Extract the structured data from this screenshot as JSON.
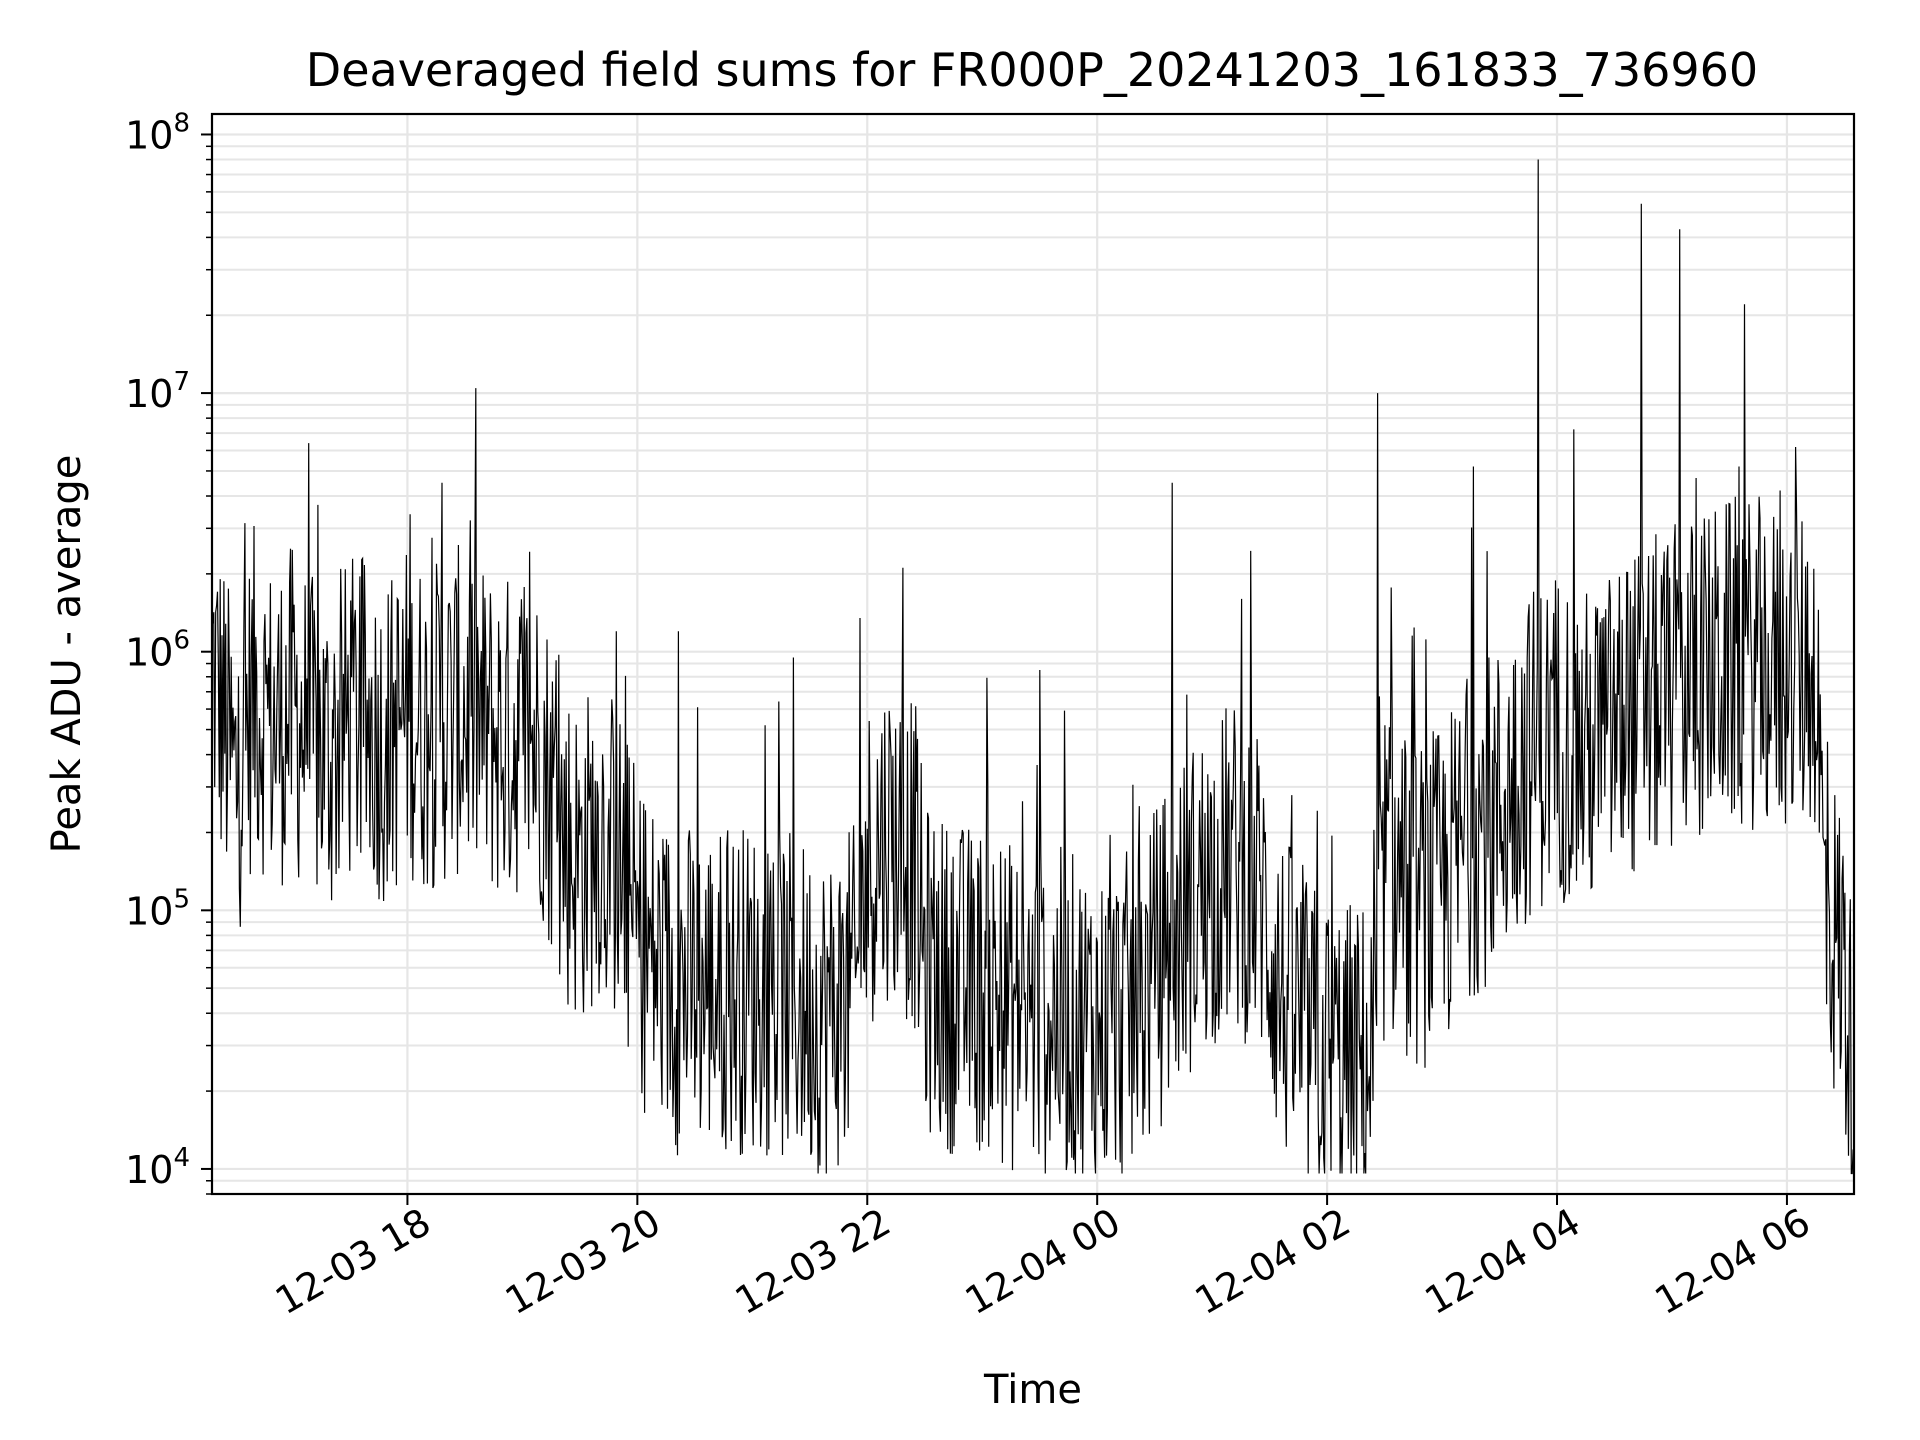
{
  "chart_data": {
    "type": "line",
    "title": "Deaveraged field sums for FR000P_20241203_161833_736960",
    "xlabel": "Time",
    "ylabel": "Peak ADU - average",
    "y_scale": "log",
    "grid": true,
    "ylim": [
      8000,
      120000000
    ],
    "xlim": [
      "2024-12-03 16:18",
      "2024-12-04 06:35"
    ],
    "x_ticks": [
      {
        "t": "2024-12-03 18:00",
        "label": "12-03 18"
      },
      {
        "t": "2024-12-03 20:00",
        "label": "12-03 20"
      },
      {
        "t": "2024-12-03 22:00",
        "label": "12-03 22"
      },
      {
        "t": "2024-12-04 00:00",
        "label": "12-04 00"
      },
      {
        "t": "2024-12-04 02:00",
        "label": "12-04 02"
      },
      {
        "t": "2024-12-04 04:00",
        "label": "12-04 04"
      },
      {
        "t": "2024-12-04 06:00",
        "label": "12-04 06"
      }
    ],
    "y_ticks": [
      {
        "value": 10000,
        "base": "10",
        "exp": "4"
      },
      {
        "value": 100000,
        "base": "10",
        "exp": "5"
      },
      {
        "value": 1000000,
        "base": "10",
        "exp": "6"
      },
      {
        "value": 10000000,
        "base": "10",
        "exp": "7"
      },
      {
        "value": 100000000,
        "base": "10",
        "exp": "8"
      }
    ],
    "line_color": "#000000",
    "grid_color": "#e6e6e6",
    "series": [
      {
        "points": [
          [
            "2024-12-03 16:18",
            900000
          ],
          [
            "2024-12-03 16:25",
            500000
          ],
          [
            "2024-12-03 16:30",
            300000
          ],
          [
            "2024-12-03 16:40",
            700000
          ],
          [
            "2024-12-03 16:50",
            500000
          ],
          [
            "2024-12-03 17:00",
            600000
          ],
          [
            "2024-12-03 17:10",
            450000
          ],
          [
            "2024-12-03 17:20",
            400000
          ],
          [
            "2024-12-03 17:30",
            550000
          ],
          [
            "2024-12-03 17:40",
            500000
          ],
          [
            "2024-12-03 17:50",
            450000
          ],
          [
            "2024-12-03 18:00",
            600000
          ],
          [
            "2024-12-03 18:10",
            500000
          ],
          [
            "2024-12-03 18:20",
            550000
          ],
          [
            "2024-12-03 18:30",
            600000
          ],
          [
            "2024-12-03 18:40",
            500000
          ],
          [
            "2024-12-03 18:50",
            450000
          ],
          [
            "2024-12-03 19:00",
            500000
          ],
          [
            "2024-12-03 19:10",
            420000
          ],
          [
            "2024-12-03 19:20",
            200000
          ],
          [
            "2024-12-03 19:30",
            150000
          ],
          [
            "2024-12-03 19:40",
            200000
          ],
          [
            "2024-12-03 19:50",
            150000
          ],
          [
            "2024-12-03 20:00",
            80000
          ],
          [
            "2024-12-03 20:10",
            60000
          ],
          [
            "2024-12-03 20:20",
            50000
          ],
          [
            "2024-12-03 20:40",
            50000
          ],
          [
            "2024-12-03 21:00",
            50000
          ],
          [
            "2024-12-03 21:20",
            45000
          ],
          [
            "2024-12-03 21:40",
            40000
          ],
          [
            "2024-12-03 21:55",
            50000
          ],
          [
            "2024-12-03 22:00",
            150000
          ],
          [
            "2024-12-03 22:10",
            200000
          ],
          [
            "2024-12-03 22:25",
            150000
          ],
          [
            "2024-12-03 22:30",
            60000
          ],
          [
            "2024-12-03 22:45",
            50000
          ],
          [
            "2024-12-03 23:00",
            50000
          ],
          [
            "2024-12-03 23:20",
            40000
          ],
          [
            "2024-12-03 23:40",
            40000
          ],
          [
            "2024-12-04 00:00",
            35000
          ],
          [
            "2024-12-04 00:20",
            40000
          ],
          [
            "2024-12-04 00:40",
            80000
          ],
          [
            "2024-12-04 00:55",
            120000
          ],
          [
            "2024-12-04 01:10",
            150000
          ],
          [
            "2024-12-04 01:25",
            120000
          ],
          [
            "2024-12-04 01:35",
            50000
          ],
          [
            "2024-12-04 01:50",
            30000
          ],
          [
            "2024-12-04 02:10",
            25000
          ],
          [
            "2024-12-04 02:25",
            25000
          ],
          [
            "2024-12-04 02:30",
            150000
          ],
          [
            "2024-12-04 02:45",
            100000
          ],
          [
            "2024-12-04 03:00",
            120000
          ],
          [
            "2024-12-04 03:15",
            200000
          ],
          [
            "2024-12-04 03:30",
            250000
          ],
          [
            "2024-12-04 03:45",
            400000
          ],
          [
            "2024-12-04 04:00",
            500000
          ],
          [
            "2024-12-04 04:15",
            400000
          ],
          [
            "2024-12-04 04:30",
            500000
          ],
          [
            "2024-12-04 04:45",
            600000
          ],
          [
            "2024-12-04 05:00",
            700000
          ],
          [
            "2024-12-04 05:15",
            800000
          ],
          [
            "2024-12-04 05:30",
            900000
          ],
          [
            "2024-12-04 05:45",
            900000
          ],
          [
            "2024-12-04 06:00",
            800000
          ],
          [
            "2024-12-04 06:15",
            900000
          ],
          [
            "2024-12-04 06:20",
            100000
          ],
          [
            "2024-12-04 06:30",
            60000
          ],
          [
            "2024-12-04 06:35",
            18000
          ]
        ],
        "spikes": [
          [
            "2024-12-03 18:01",
            3400000
          ],
          [
            "2024-12-03 18:18",
            4500000
          ],
          [
            "2024-12-03 19:49",
            1200000
          ],
          [
            "2024-12-03 20:21",
            1200000
          ],
          [
            "2024-12-03 21:21",
            950000
          ],
          [
            "2024-12-03 21:56",
            1350000
          ],
          [
            "2024-12-03 23:30",
            850000
          ],
          [
            "2024-12-04 00:39",
            4500000
          ],
          [
            "2024-12-04 01:15",
            1600000
          ],
          [
            "2024-12-04 02:26",
            10000000
          ],
          [
            "2024-12-04 03:16",
            5200000
          ],
          [
            "2024-12-04 03:50",
            80000000
          ],
          [
            "2024-12-04 04:44",
            54000000
          ],
          [
            "2024-12-04 05:04",
            43000000
          ],
          [
            "2024-12-04 05:56",
            4200000
          ]
        ],
        "noise_band_decades": 1.3
      }
    ]
  }
}
